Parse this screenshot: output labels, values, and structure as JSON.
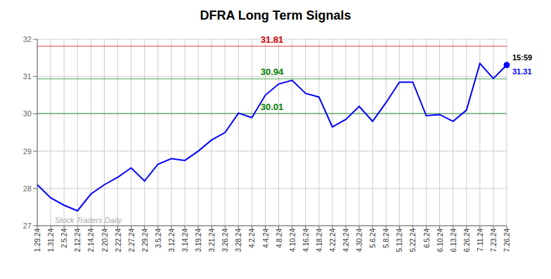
{
  "chart_data": {
    "type": "line",
    "title": "DFRA Long Term Signals",
    "color": "blue",
    "grid": true,
    "ylim": [
      27,
      32
    ],
    "yticks": [
      27,
      28,
      29,
      30,
      31,
      32
    ],
    "categories": [
      "1.29.24",
      "1.31.24",
      "2.5.24",
      "2.12.24",
      "2.14.24",
      "2.20.24",
      "2.22.24",
      "2.27.24",
      "2.29.24",
      "3.5.24",
      "3.12.24",
      "3.14.24",
      "3.19.24",
      "3.21.24",
      "3.26.24",
      "3.28.24",
      "4.2.24",
      "4.4.24",
      "4.8.24",
      "4.10.24",
      "4.16.24",
      "4.18.24",
      "4.22.24",
      "4.24.24",
      "4.30.24",
      "5.6.24",
      "5.8.24",
      "5.13.24",
      "5.22.24",
      "6.5.24",
      "6.10.24",
      "6.13.24",
      "6.26.24",
      "7.11.24",
      "7.23.24",
      "7.26.24"
    ],
    "values": [
      28.1,
      27.75,
      27.55,
      27.4,
      27.85,
      28.1,
      28.3,
      28.55,
      28.2,
      28.65,
      28.8,
      28.75,
      29.0,
      29.3,
      29.5,
      30.02,
      29.9,
      30.5,
      30.8,
      30.9,
      30.55,
      30.45,
      29.65,
      29.85,
      30.2,
      29.8,
      30.3,
      30.85,
      30.85,
      29.95,
      29.98,
      29.8,
      30.1,
      31.35,
      30.95,
      31.31
    ],
    "value_labels": [
      null,
      null,
      null,
      null,
      null,
      null,
      null,
      null,
      null,
      null,
      null,
      null,
      null,
      null,
      null,
      null,
      null,
      null,
      null,
      null,
      null,
      null,
      null,
      null,
      null,
      null,
      null,
      null,
      null,
      null,
      null,
      null,
      null,
      null,
      null,
      "31.31"
    ],
    "reference_lines": [
      {
        "y": 31.81,
        "label": "31.81",
        "color": "#cc0000"
      },
      {
        "y": 30.94,
        "label": "30.94",
        "color": "green"
      },
      {
        "y": 30.01,
        "label": "30.01",
        "color": "green"
      }
    ],
    "annotations": [
      {
        "text": "Stock Traders Daily",
        "color": "#aaaaaa"
      },
      {
        "text": "15:59",
        "color": "black",
        "x": "7.26.24"
      }
    ]
  }
}
